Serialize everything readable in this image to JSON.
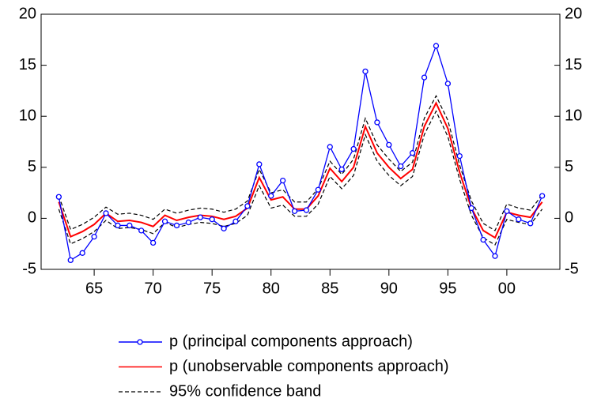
{
  "chart_data": {
    "type": "line",
    "x": [
      1962,
      1963,
      1964,
      1965,
      1966,
      1967,
      1968,
      1969,
      1970,
      1971,
      1972,
      1973,
      1974,
      1975,
      1976,
      1977,
      1978,
      1979,
      1980,
      1981,
      1982,
      1983,
      1984,
      1985,
      1986,
      1987,
      1988,
      1989,
      1990,
      1991,
      1992,
      1993,
      1994,
      1995,
      1996,
      1997,
      1998,
      1999,
      2000,
      2001,
      2002,
      2003
    ],
    "series": [
      {
        "name": "p (principal components approach)",
        "color": "#0000ff",
        "marker": "circle",
        "values": [
          2.1,
          -4.1,
          -3.4,
          -1.8,
          0.5,
          -0.7,
          -0.7,
          -1.2,
          -2.4,
          -0.3,
          -0.7,
          -0.4,
          0.1,
          -0.1,
          -1.0,
          -0.3,
          1.2,
          5.3,
          2.2,
          3.7,
          0.7,
          0.8,
          2.8,
          7.0,
          4.8,
          6.8,
          14.4,
          9.4,
          7.2,
          5.1,
          6.4,
          13.8,
          16.9,
          13.2,
          6.1,
          1.0,
          -2.1,
          -3.7,
          0.7,
          -0.1,
          -0.5,
          2.2
        ]
      },
      {
        "name": "p (unobservable components approach)",
        "color": "#ff0000",
        "values": [
          1.6,
          -1.8,
          -1.3,
          -0.6,
          0.5,
          -0.3,
          -0.2,
          -0.4,
          -0.8,
          0.3,
          -0.2,
          0.1,
          0.3,
          0.2,
          -0.1,
          0.2,
          1.0,
          4.0,
          1.8,
          2.1,
          0.9,
          0.9,
          2.2,
          4.9,
          3.6,
          5.0,
          9.0,
          6.4,
          5.0,
          3.9,
          4.8,
          9.0,
          11.3,
          8.8,
          4.5,
          1.0,
          -1.2,
          -1.9,
          0.6,
          0.3,
          0.1,
          1.6
        ]
      }
    ],
    "band": {
      "name": "95% confidence band",
      "color": "#000000",
      "upper": [
        2.2,
        -1.1,
        -0.6,
        0.1,
        1.1,
        0.4,
        0.5,
        0.3,
        -0.1,
        0.9,
        0.5,
        0.8,
        1.0,
        0.9,
        0.6,
        0.9,
        1.7,
        4.8,
        2.5,
        2.8,
        1.6,
        1.6,
        2.9,
        5.6,
        4.3,
        5.8,
        9.8,
        7.2,
        5.8,
        4.6,
        5.5,
        9.8,
        12.0,
        9.6,
        5.2,
        1.7,
        -0.5,
        -1.2,
        1.4,
        1.0,
        0.8,
        2.3
      ],
      "lower": [
        0.9,
        -2.5,
        -2.0,
        -1.3,
        -0.2,
        -1.0,
        -0.9,
        -1.1,
        -1.5,
        -0.4,
        -0.9,
        -0.6,
        -0.4,
        -0.5,
        -0.8,
        -0.5,
        0.3,
        3.2,
        1.0,
        1.3,
        0.2,
        0.2,
        1.4,
        4.1,
        2.9,
        4.2,
        8.2,
        5.6,
        4.2,
        3.2,
        4.1,
        8.2,
        10.5,
        8.0,
        3.8,
        0.3,
        -1.9,
        -2.6,
        -0.1,
        -0.4,
        -0.6,
        0.9
      ]
    },
    "xlim": [
      1960.5,
      2004.5
    ],
    "xticks": [
      {
        "value": 1965,
        "label": "65"
      },
      {
        "value": 1970,
        "label": "70"
      },
      {
        "value": 1975,
        "label": "75"
      },
      {
        "value": 1980,
        "label": "80"
      },
      {
        "value": 1985,
        "label": "85"
      },
      {
        "value": 1990,
        "label": "90"
      },
      {
        "value": 1995,
        "label": "95"
      },
      {
        "value": 2000,
        "label": "00"
      }
    ],
    "ylim": [
      -5,
      20
    ],
    "yticks": [
      -5,
      0,
      5,
      10,
      15,
      20
    ],
    "y2lim": [
      -5,
      20
    ],
    "y2ticks": [
      -5,
      0,
      5,
      10,
      15,
      20
    ],
    "grid": false
  }
}
